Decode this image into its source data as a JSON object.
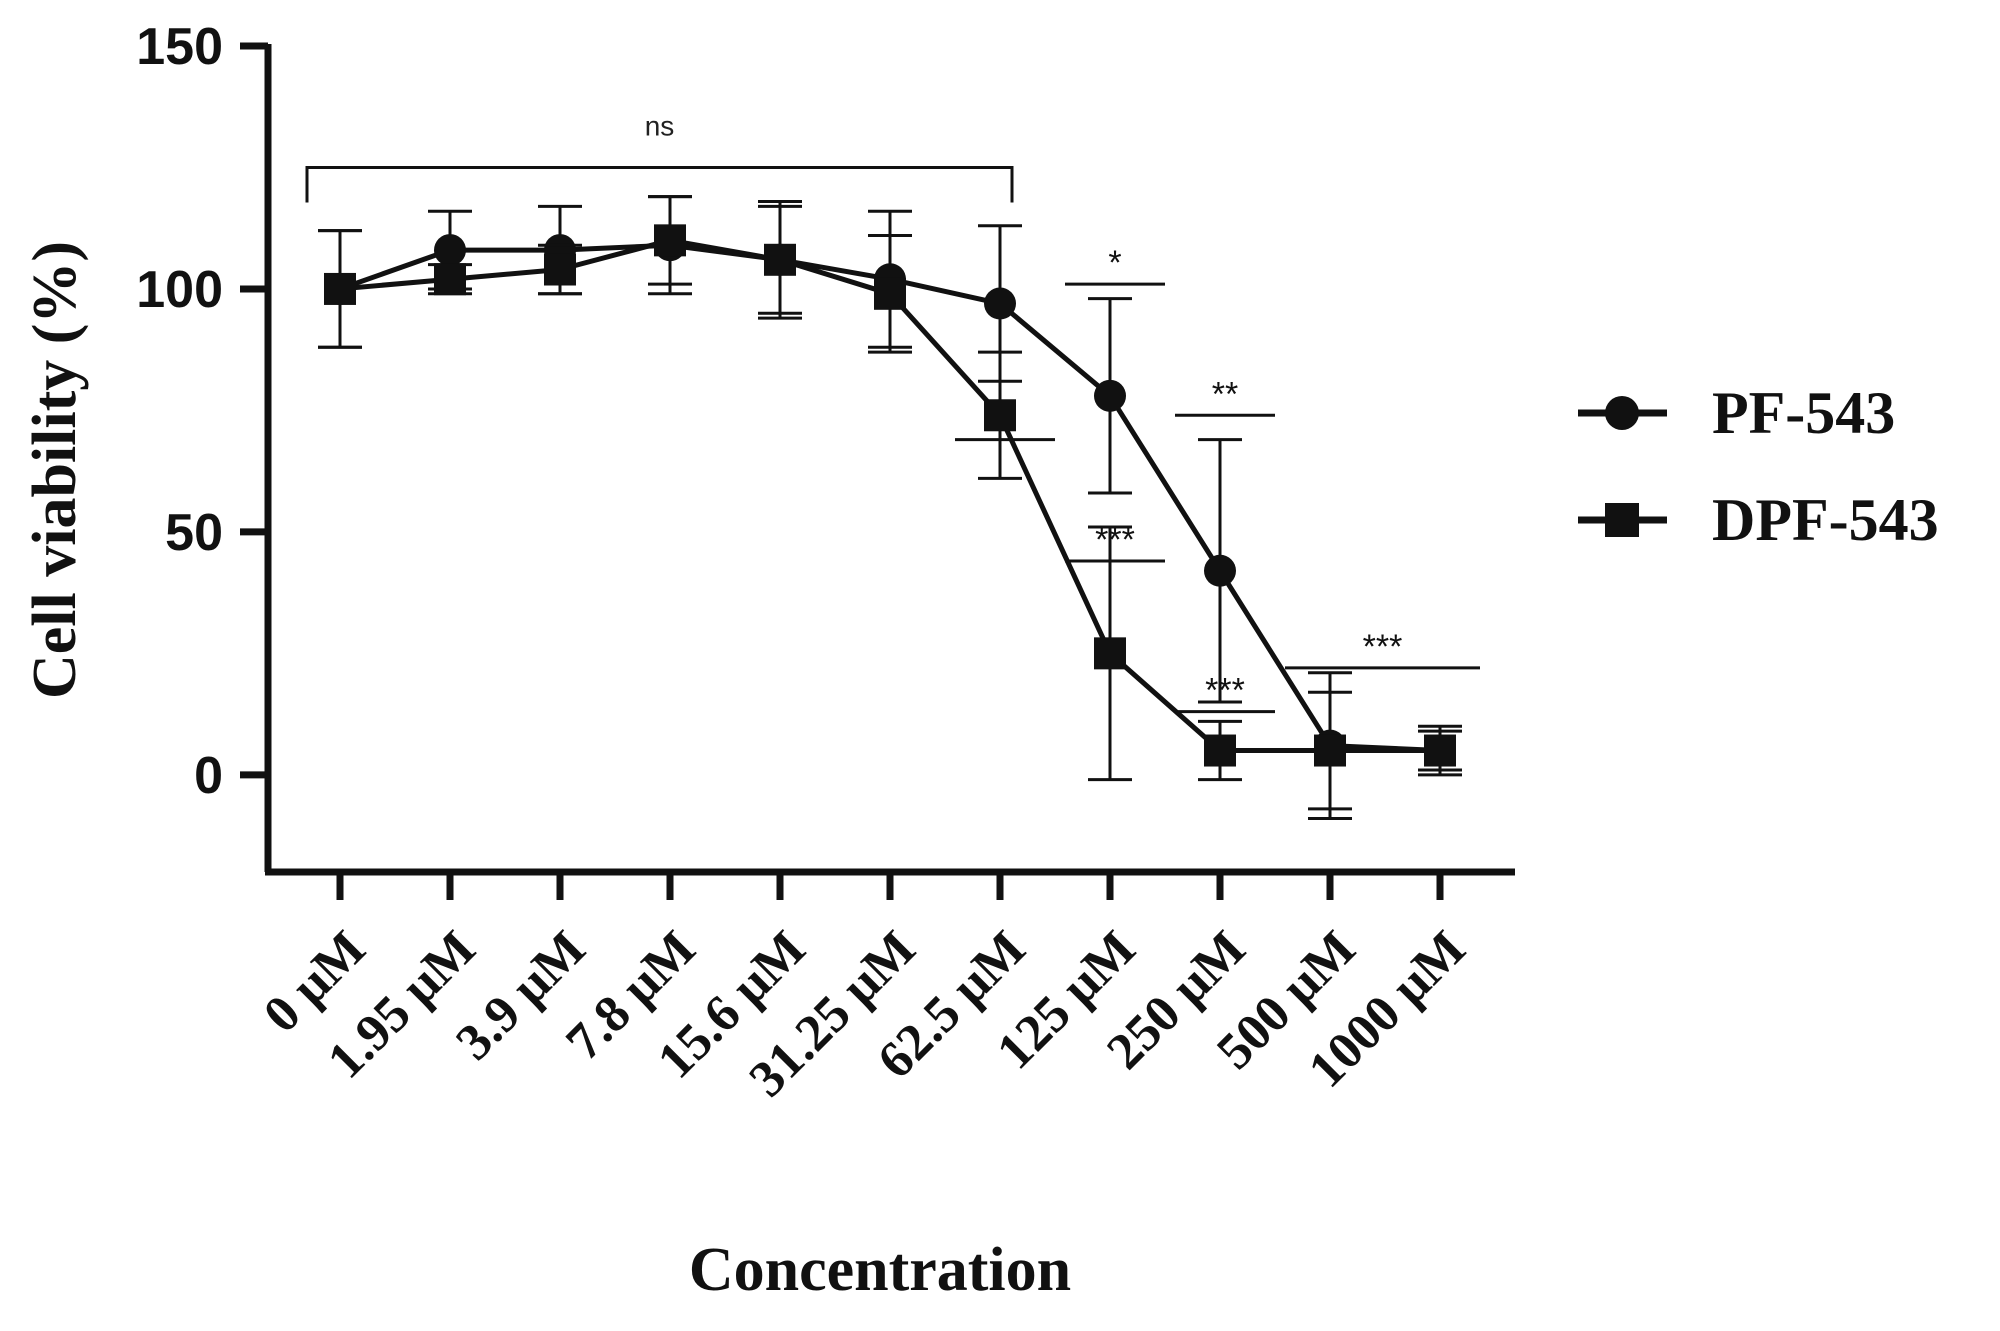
{
  "chart_data": {
    "type": "line",
    "title": "",
    "xlabel": "Concentration",
    "ylabel": "Cell viability (%)",
    "ylim": [
      -20,
      150
    ],
    "yticks": [
      0,
      50,
      100,
      150
    ],
    "categories": [
      "0 μM",
      "1.95 μM",
      "3.9 μM",
      "7.8 μM",
      "15.6 μM",
      "31.25 μM",
      "62.5 μM",
      "125 μM",
      "250 μM",
      "500 μM",
      "1000 μM"
    ],
    "series": [
      {
        "name": "PF-543",
        "marker": "circle",
        "values": [
          100,
          108,
          108,
          109,
          106,
          102,
          97,
          78,
          42,
          6,
          5
        ],
        "errors": [
          12,
          8,
          9,
          10,
          11,
          14,
          16,
          20,
          27,
          15,
          5
        ]
      },
      {
        "name": "DPF-543",
        "marker": "square",
        "values": [
          100,
          102,
          104,
          110,
          106,
          99,
          74,
          25,
          5,
          5,
          5
        ],
        "errors": [
          12,
          3,
          5,
          9,
          12,
          12,
          13,
          26,
          6,
          12,
          4
        ]
      }
    ],
    "significance": [
      {
        "label": "ns",
        "from": 0,
        "to": 6,
        "y": 125
      },
      {
        "label": "*",
        "from": 6,
        "to": 6,
        "y": 69
      },
      {
        "label": "*",
        "from": 7,
        "to": 7,
        "y": 101
      },
      {
        "label": "***",
        "from": 7,
        "to": 7,
        "y": 44
      },
      {
        "label": "**",
        "from": 8,
        "to": 8,
        "y": 74
      },
      {
        "label": "***",
        "from": 8,
        "to": 8,
        "y": 13
      },
      {
        "label": "***",
        "from": 9,
        "to": 10,
        "y": 22
      }
    ],
    "legend_position": "right",
    "grid": false
  },
  "colors": {
    "line": "#111111",
    "background": "#ffffff"
  }
}
